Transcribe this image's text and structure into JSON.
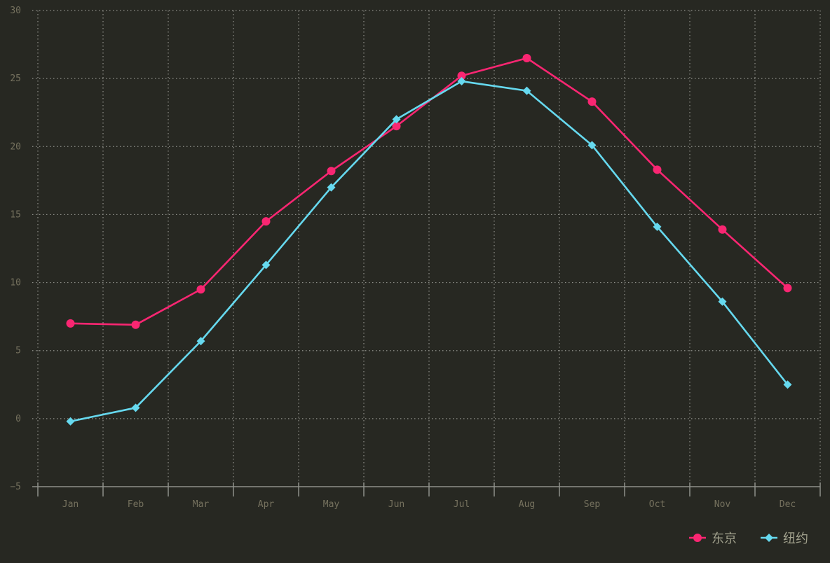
{
  "chart_data": {
    "type": "line",
    "categories": [
      "Jan",
      "Feb",
      "Mar",
      "Apr",
      "May",
      "Jun",
      "Jul",
      "Aug",
      "Sep",
      "Oct",
      "Nov",
      "Dec"
    ],
    "series": [
      {
        "name": "东京",
        "color": "#f92672",
        "marker": "circle",
        "values": [
          7.0,
          6.9,
          9.5,
          14.5,
          18.2,
          21.5,
          25.2,
          26.5,
          23.3,
          18.3,
          13.9,
          9.6
        ]
      },
      {
        "name": "纽约",
        "color": "#66d9ef",
        "marker": "diamond",
        "values": [
          -0.2,
          0.8,
          5.7,
          11.3,
          17.0,
          22.0,
          24.8,
          24.1,
          20.1,
          14.1,
          8.6,
          2.5
        ]
      }
    ],
    "ylim": [
      -5,
      30
    ],
    "yticks": [
      -5,
      0,
      5,
      10,
      15,
      20,
      25,
      30
    ],
    "grid": true,
    "legend_position": "bottom-right",
    "title": "",
    "xlabel": "",
    "ylabel": ""
  },
  "colors": {
    "background": "#272822",
    "grid": "#8f908a",
    "tick_text": "#75715e",
    "legend_text": "#a0a08c"
  }
}
